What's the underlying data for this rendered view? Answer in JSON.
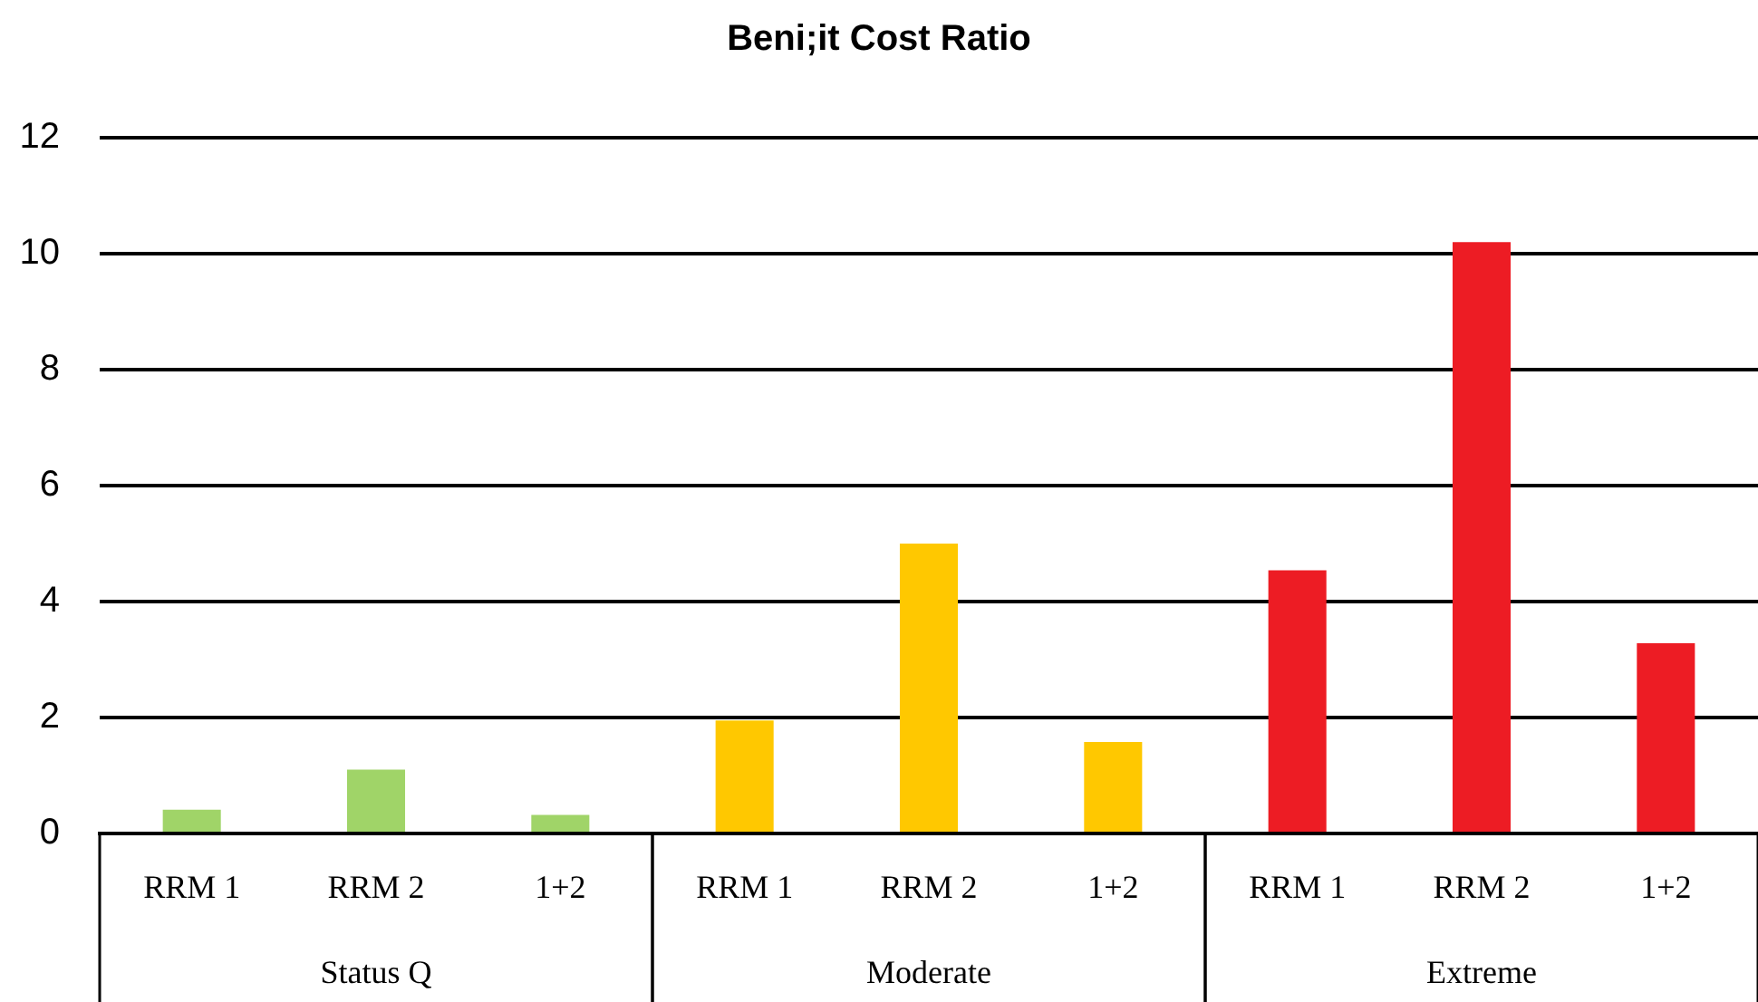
{
  "chart_data": {
    "type": "bar",
    "title": "Beni;it Cost Ratio",
    "categories": [
      "RRM 1",
      "RRM 2",
      "1+2",
      "RRM 1",
      "RRM 2",
      "1+2",
      "RRM 1",
      "RRM 2",
      "1+2"
    ],
    "series": [
      {
        "color": "#a0d468",
        "values": [
          0.41,
          1.1,
          0.32,
          null,
          null,
          null,
          null,
          null,
          null
        ]
      },
      {
        "color": "#ffc800",
        "values": [
          null,
          null,
          null,
          1.95,
          5.0,
          1.58,
          null,
          null,
          null
        ]
      },
      {
        "color": "#ed1c24",
        "values": [
          null,
          null,
          null,
          null,
          null,
          null,
          4.54,
          10.2,
          3.28
        ]
      }
    ],
    "annotations": [
      "Status Q",
      "Moderate",
      "Extreme"
    ],
    "ylim": [
      0,
      12
    ],
    "yticks": [
      0,
      2,
      4,
      6,
      8,
      10,
      12
    ],
    "grid": "y",
    "legend": false
  }
}
